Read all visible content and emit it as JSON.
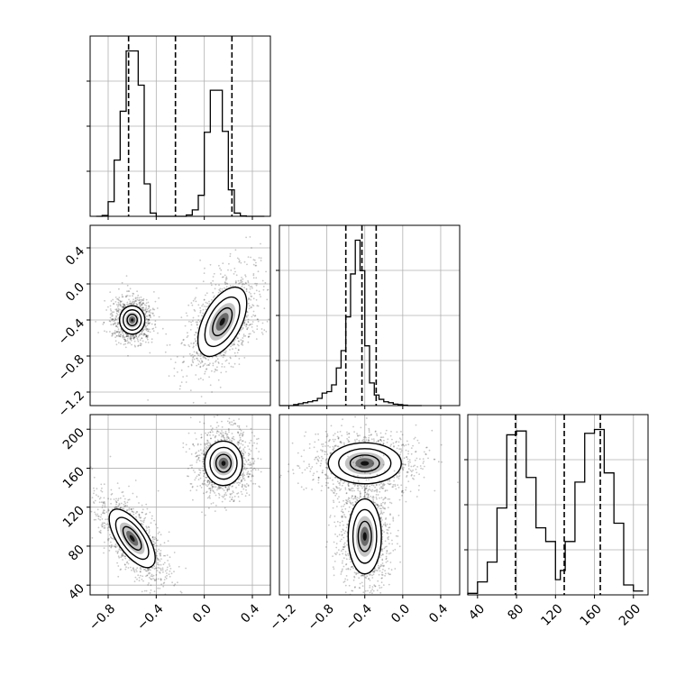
{
  "chart_data": [
    {
      "type": "histogram",
      "panel": "diag-1",
      "xlim": [
        -0.95,
        0.55
      ],
      "bins": [
        -0.9,
        -0.85,
        -0.8,
        -0.75,
        -0.7,
        -0.65,
        -0.6,
        -0.55,
        -0.5,
        -0.45,
        -0.4,
        -0.35,
        -0.3,
        -0.25,
        -0.2,
        -0.15,
        -0.1,
        -0.05,
        0.0,
        0.05,
        0.1,
        0.15,
        0.2,
        0.25,
        0.3,
        0.35,
        0.4,
        0.45,
        0.5
      ],
      "counts": [
        0,
        2,
        32,
        123,
        230,
        362,
        362,
        287,
        71,
        7,
        0,
        0,
        0,
        0,
        0,
        3,
        14,
        46,
        184,
        276,
        276,
        186,
        58,
        7,
        1,
        0,
        0,
        0
      ],
      "quantile_lines": [
        -0.63,
        -0.24,
        0.23
      ],
      "xticks": [
        "−0.8",
        "−0.4",
        "0.0",
        "0.4"
      ],
      "grid": true
    },
    {
      "type": "histogram",
      "panel": "diag-2",
      "xlim": [
        -1.3,
        0.6
      ],
      "bins": [
        -1.3,
        -1.25,
        -1.2,
        -1.15,
        -1.1,
        -1.05,
        -1.0,
        -0.95,
        -0.9,
        -0.85,
        -0.8,
        -0.75,
        -0.7,
        -0.65,
        -0.6,
        -0.55,
        -0.5,
        -0.45,
        -0.4,
        -0.35,
        -0.3,
        -0.25,
        -0.2,
        -0.15,
        -0.1,
        -0.05,
        0.0,
        0.05,
        0.1,
        0.15,
        0.2
      ],
      "counts": [
        0,
        0,
        0,
        2,
        4,
        6,
        8,
        10,
        15,
        26,
        29,
        43,
        78,
        114,
        184,
        273,
        343,
        280,
        124,
        47,
        22,
        13,
        8,
        6,
        3,
        2,
        1,
        0,
        0,
        0
      ],
      "quantile_lines": [
        -0.6,
        -0.43,
        -0.28
      ],
      "xticks": [
        "−1.2",
        "−0.8",
        "−0.4",
        "0.0",
        "0.4"
      ],
      "grid": true
    },
    {
      "type": "histogram",
      "panel": "diag-3",
      "xlim": [
        30,
        215
      ],
      "bins": [
        30,
        40,
        50,
        60,
        70,
        80,
        90,
        100,
        110,
        120,
        125,
        130,
        140,
        150,
        160,
        170,
        180,
        190,
        200,
        210
      ],
      "counts": [
        2,
        17,
        43,
        114,
        210,
        215,
        154,
        88,
        70,
        20,
        32,
        70,
        148,
        212,
        217,
        160,
        94,
        13,
        5
      ],
      "quantile_lines": [
        79,
        129,
        166
      ],
      "xticks": [
        "40",
        "80",
        "120",
        "160",
        "200"
      ],
      "grid": true
    },
    {
      "type": "contour",
      "panel": "x1-vs-x2",
      "xlim": [
        -0.95,
        0.55
      ],
      "ylim": [
        -1.35,
        0.65
      ],
      "blobs": [
        {
          "cx": -0.6,
          "cy": -0.4,
          "sx": 0.06,
          "sy": 0.09,
          "angle": 0
        },
        {
          "cx": 0.15,
          "cy": -0.42,
          "sx": 0.09,
          "sy": 0.24,
          "angle": 28
        }
      ],
      "yticks": [
        "0.4",
        "0.0",
        "−0.4",
        "−0.8",
        "−1.2"
      ],
      "grid": true
    },
    {
      "type": "contour",
      "panel": "x1-vs-x3",
      "xlim": [
        -0.95,
        0.55
      ],
      "ylim": [
        30,
        215
      ],
      "blobs": [
        {
          "cx": -0.6,
          "cy": 88,
          "sx": 0.07,
          "sy": 20,
          "angle": -35
        },
        {
          "cx": 0.16,
          "cy": 165,
          "sx": 0.09,
          "sy": 13,
          "angle": 0
        }
      ],
      "xticks": [
        "−0.8",
        "−0.4",
        "0.0",
        "0.4"
      ],
      "yticks": [
        "200",
        "160",
        "120",
        "80",
        "40"
      ],
      "grid": true
    },
    {
      "type": "contour",
      "panel": "x2-vs-x3",
      "xlim": [
        -1.3,
        0.6
      ],
      "ylim": [
        30,
        215
      ],
      "blobs": [
        {
          "cx": -0.4,
          "cy": 165,
          "sx": 0.22,
          "sy": 12,
          "angle": 0
        },
        {
          "cx": -0.4,
          "cy": 90,
          "sx": 0.1,
          "sy": 22,
          "angle": 0
        }
      ],
      "xticks": [
        "−1.2",
        "−0.8",
        "−0.4",
        "0.0",
        "0.4"
      ],
      "grid": true
    }
  ]
}
